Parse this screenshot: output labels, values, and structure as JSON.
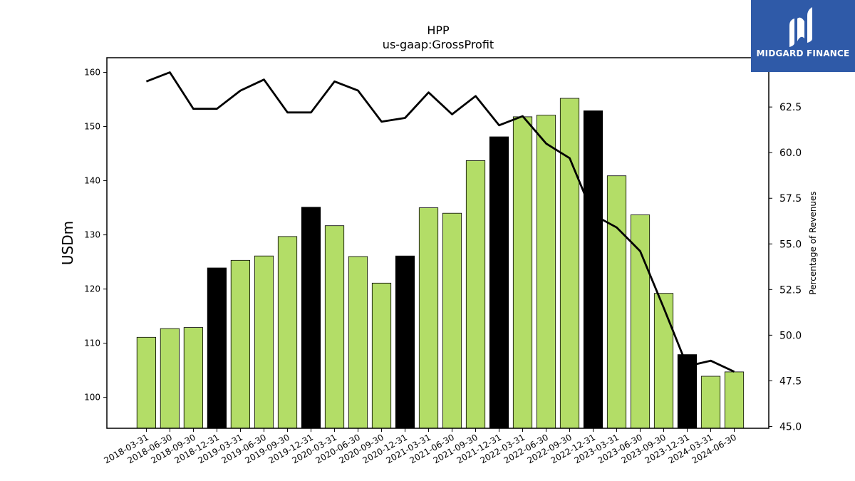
{
  "chart_data": {
    "type": "bar+line",
    "title": "HPP",
    "subtitle": "us-gaap:GrossProfit",
    "ylabel": "USDm",
    "y2label": "Percentage of Revenues",
    "ylim": [
      94.3,
      162.7
    ],
    "y2lim": [
      44.9,
      65.2
    ],
    "yticks": [
      100,
      110,
      120,
      130,
      140,
      150,
      160
    ],
    "y2ticks": [
      "45.0",
      "47.5",
      "50.0",
      "52.5",
      "55.0",
      "57.5",
      "60.0",
      "62.5"
    ],
    "categories": [
      "2018-03-31",
      "2018-06-30",
      "2018-09-30",
      "2018-12-31",
      "2019-03-31",
      "2019-06-30",
      "2019-09-30",
      "2019-12-31",
      "2020-03-31",
      "2020-06-30",
      "2020-09-30",
      "2020-12-31",
      "2021-03-31",
      "2021-06-30",
      "2021-09-30",
      "2021-12-31",
      "2022-03-31",
      "2022-06-30",
      "2022-09-30",
      "2022-12-31",
      "2023-03-31",
      "2023-06-30",
      "2023-09-30",
      "2023-12-31",
      "2024-03-31",
      "2024-06-30"
    ],
    "bar_values": [
      111.1,
      112.7,
      112.9,
      123.9,
      125.3,
      126.1,
      129.7,
      135.1,
      131.7,
      126.0,
      121.1,
      126.1,
      135.0,
      134.0,
      143.7,
      148.1,
      151.8,
      152.1,
      155.2,
      152.9,
      140.9,
      133.7,
      119.2,
      107.9,
      103.9,
      104.7
    ],
    "bar_highlight": [
      false,
      false,
      false,
      true,
      false,
      false,
      false,
      true,
      false,
      false,
      false,
      true,
      false,
      false,
      false,
      true,
      false,
      false,
      false,
      true,
      false,
      false,
      false,
      true,
      false,
      false
    ],
    "line_values": [
      63.9,
      64.4,
      62.4,
      62.4,
      63.4,
      64.0,
      62.2,
      62.2,
      63.9,
      63.4,
      61.7,
      61.9,
      63.3,
      62.1,
      63.1,
      61.5,
      62.0,
      60.5,
      59.7,
      56.6,
      55.9,
      54.6,
      51.5,
      48.3,
      48.6,
      48.0
    ],
    "colors": {
      "bar": "#b3dd67",
      "bar_highlight": "#000000",
      "line": "#000000"
    },
    "grid": false,
    "legend": "none"
  },
  "logo": {
    "text": "MIDGARD FINANCE"
  }
}
